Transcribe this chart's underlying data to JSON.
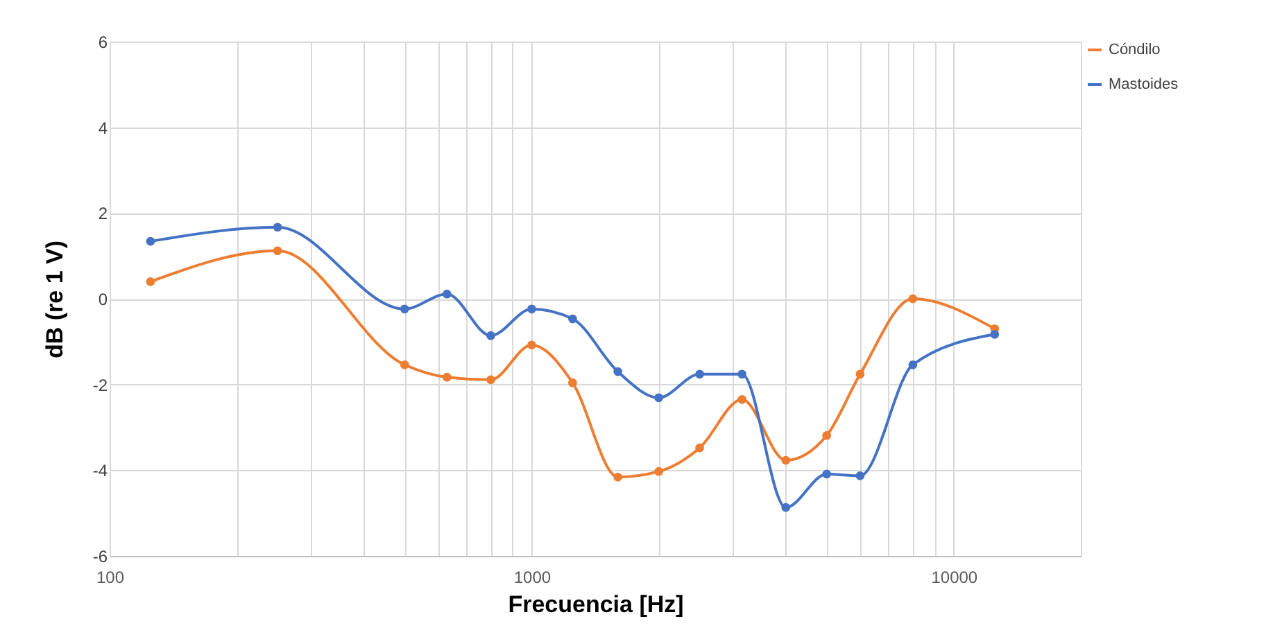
{
  "chart_data": {
    "type": "line",
    "xlabel": "Frecuencia [Hz]",
    "ylabel": "dB (re 1 V)",
    "log": "x",
    "grid": true,
    "legend": "right",
    "marker": "circle",
    "line_style": "solid",
    "x": [
      125,
      250,
      500,
      630,
      800,
      1000,
      1250,
      1600,
      2000,
      2500,
      3150,
      4000,
      5000,
      6000,
      8000,
      12500
    ],
    "xlim": [
      100,
      20000
    ],
    "xticks": [
      100,
      {
        "value": 200,
        "label": null
      },
      {
        "value": 300,
        "label": null
      },
      {
        "value": 400,
        "label": null
      },
      {
        "value": 500,
        "label": null
      },
      {
        "value": 600,
        "label": null
      },
      {
        "value": 700,
        "label": null
      },
      {
        "value": 800,
        "label": null
      },
      {
        "value": 900,
        "label": null
      },
      1000,
      {
        "value": 2000,
        "label": null
      },
      {
        "value": 3000,
        "label": null
      },
      {
        "value": 4000,
        "label": null
      },
      {
        "value": 5000,
        "label": null
      },
      {
        "value": 6000,
        "label": null
      },
      {
        "value": 7000,
        "label": null
      },
      {
        "value": 8000,
        "label": null
      },
      {
        "value": 9000,
        "label": null
      },
      10000,
      {
        "value": 20000,
        "label": null
      }
    ],
    "ylim": [
      -6,
      6
    ],
    "yticks": [
      -6,
      -4,
      -2,
      0,
      2,
      4,
      6
    ],
    "series": [
      {
        "name": "Cóndilo",
        "color": "#ed7d31",
        "values": [
          0.4,
          1.12,
          -1.54,
          -1.83,
          -1.89,
          -1.08,
          -1.96,
          -4.16,
          -4.03,
          -3.48,
          -2.35,
          -3.77,
          -3.19,
          -1.76,
          0.0,
          -0.7
        ]
      },
      {
        "name": "Mastoides",
        "color": "#4472c4",
        "values": [
          1.34,
          1.67,
          -0.24,
          0.11,
          -0.86,
          -0.24,
          -0.47,
          -1.7,
          -2.31,
          -1.76,
          -1.76,
          -4.87,
          -4.09,
          -4.13,
          -1.54,
          -0.83
        ]
      }
    ]
  }
}
